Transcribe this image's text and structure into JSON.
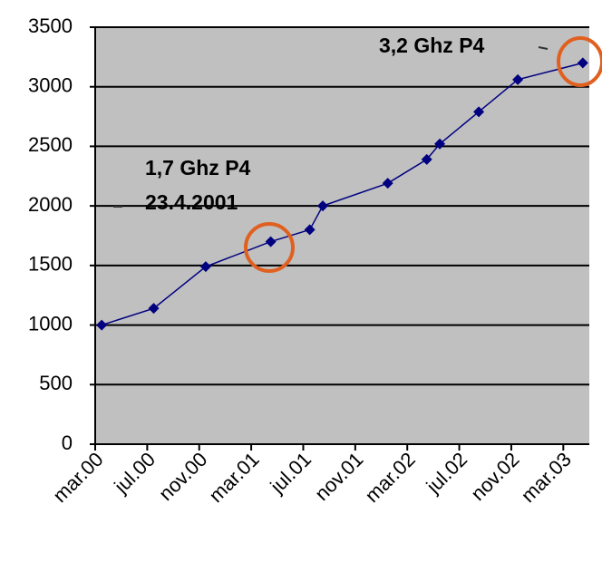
{
  "chart_data": {
    "type": "line",
    "annotations": [
      "1,7 Ghz P4",
      "23.4.2001",
      "3,2 Ghz P4"
    ],
    "x": [
      0.5,
      4.5,
      8.5,
      13.5,
      16.5,
      17.5,
      22.5,
      25.5,
      26.5,
      29.5,
      32.5,
      37.5
    ],
    "series": [
      {
        "color": "#000080",
        "values": [
          1000,
          1140,
          1490,
          1700,
          1800,
          2000,
          2190,
          2390,
          2520,
          2790,
          3060,
          3200
        ]
      }
    ],
    "xlim": [
      0,
      38
    ],
    "xticks": [
      {
        "value": 0,
        "label": "mar.00"
      },
      {
        "value": 4,
        "label": "jul.00"
      },
      {
        "value": 8,
        "label": "nov.00"
      },
      {
        "value": 12,
        "label": "mar.01"
      },
      {
        "value": 16,
        "label": "jul.01"
      },
      {
        "value": 20,
        "label": "nov.01"
      },
      {
        "value": 24,
        "label": "mar.02"
      },
      {
        "value": 28,
        "label": "jul.02"
      },
      {
        "value": 32,
        "label": "nov.02"
      },
      {
        "value": 36,
        "label": "mar.03"
      }
    ],
    "ylim": [
      0,
      3500
    ],
    "yticks": [
      0,
      500,
      1000,
      1500,
      2000,
      2500,
      3000,
      3500
    ],
    "grid": true
  }
}
